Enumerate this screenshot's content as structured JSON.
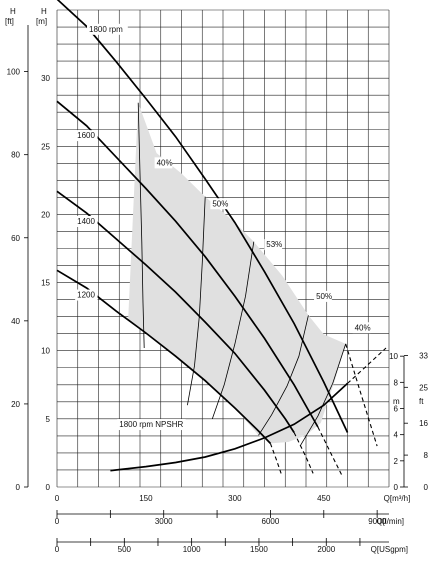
{
  "chart_data": {
    "type": "line",
    "axes": {
      "h_m": {
        "label": "H",
        "unit": "[m]",
        "min": 0,
        "max": 35,
        "ticks": [
          0,
          5,
          10,
          15,
          20,
          25,
          30
        ]
      },
      "h_ft": {
        "label": "H",
        "unit": "[ft]",
        "ticks": [
          0,
          20,
          40,
          60,
          80,
          100
        ]
      },
      "npsh_m": {
        "label": "m",
        "ticks": [
          0,
          2,
          4,
          6,
          8,
          10
        ]
      },
      "npsh_ft": {
        "label": "ft",
        "ticks": [
          0,
          8,
          16,
          25,
          33
        ]
      },
      "q_m3h": {
        "label": "Q[m³/h]",
        "min": 0,
        "max": 560,
        "ticks": [
          0,
          150,
          300,
          450
        ]
      },
      "q_lmin": {
        "label": "Q[l/min]",
        "ticks": [
          0,
          3000,
          6000,
          9000
        ]
      },
      "q_usgpm": {
        "label": "Q[USgpm]",
        "ticks": [
          0,
          500,
          1000,
          1500,
          2000
        ]
      }
    },
    "grid": true,
    "speed_curves": [
      {
        "name": "1800 rpm",
        "points": [
          [
            0,
            35.8
          ],
          [
            50,
            33.8
          ],
          [
            100,
            31.2
          ],
          [
            150,
            28.5
          ],
          [
            200,
            25.7
          ],
          [
            250,
            22.6
          ],
          [
            300,
            19.4
          ],
          [
            350,
            15.8
          ],
          [
            400,
            12.0
          ],
          [
            450,
            7.7
          ],
          [
            490,
            4.0
          ]
        ]
      },
      {
        "name": "1600",
        "points": [
          [
            0,
            28.3
          ],
          [
            50,
            26.5
          ],
          [
            100,
            24.2
          ],
          [
            150,
            21.9
          ],
          [
            200,
            19.5
          ],
          [
            250,
            16.9
          ],
          [
            300,
            14.0
          ],
          [
            350,
            10.9
          ],
          [
            400,
            7.5
          ],
          [
            440,
            4.4
          ]
        ]
      },
      {
        "name": "1400",
        "points": [
          [
            0,
            21.7
          ],
          [
            50,
            20.1
          ],
          [
            100,
            18.2
          ],
          [
            150,
            16.3
          ],
          [
            200,
            14.3
          ],
          [
            250,
            12.1
          ],
          [
            300,
            9.8
          ],
          [
            350,
            7.1
          ],
          [
            385,
            5.0
          ],
          [
            400,
            4.0
          ]
        ]
      },
      {
        "name": "1200",
        "points": [
          [
            0,
            15.9
          ],
          [
            50,
            14.6
          ],
          [
            100,
            12.9
          ],
          [
            150,
            11.3
          ],
          [
            200,
            9.6
          ],
          [
            250,
            7.8
          ],
          [
            300,
            5.8
          ],
          [
            340,
            4.1
          ],
          [
            360,
            3.2
          ]
        ]
      }
    ],
    "efficiency_curves": [
      {
        "name": "40%",
        "points": [
          [
            137,
            28.2
          ],
          [
            140,
            23
          ],
          [
            143,
            18
          ],
          [
            145,
            13.5
          ],
          [
            147,
            10.2
          ]
        ]
      },
      {
        "name": "50%",
        "points": [
          [
            250,
            21.3
          ],
          [
            245,
            16.5
          ],
          [
            240,
            12.5
          ],
          [
            232,
            8.9
          ],
          [
            220,
            6.0
          ]
        ]
      },
      {
        "name": "53%",
        "points": [
          [
            332,
            18.0
          ],
          [
            318,
            14.0
          ],
          [
            300,
            10.5
          ],
          [
            282,
            7.5
          ],
          [
            262,
            5.0
          ]
        ]
      },
      {
        "name": "50%",
        "points": [
          [
            424,
            12.6
          ],
          [
            408,
            9.6
          ],
          [
            388,
            7.4
          ],
          [
            362,
            5.3
          ],
          [
            340,
            3.8
          ]
        ]
      },
      {
        "name": "40%",
        "points": [
          [
            487,
            10.5
          ],
          [
            465,
            7.6
          ],
          [
            440,
            5.2
          ],
          [
            410,
            3.0
          ]
        ]
      }
    ],
    "efficiency_label_positions": [
      {
        "text": "40%",
        "q": 168,
        "h": 23.6
      },
      {
        "text": "50%",
        "q": 262,
        "h": 20.6
      },
      {
        "text": "53%",
        "q": 353,
        "h": 17.6
      },
      {
        "text": "50%",
        "q": 437,
        "h": 13.8
      },
      {
        "text": "40%",
        "q": 502,
        "h": 11.5
      }
    ],
    "speed_label_positions": [
      {
        "text": "1800 rpm",
        "q": 54,
        "h": 33.4
      },
      {
        "text": "1600",
        "q": 34,
        "h": 25.6
      },
      {
        "text": "1400",
        "q": 34,
        "h": 19.3
      },
      {
        "text": "1200",
        "q": 34,
        "h": 13.9
      }
    ],
    "npsh_curve": {
      "name": "1800 rpm NPSHR",
      "solid": [
        [
          90,
          1.2
        ],
        [
          150,
          1.5
        ],
        [
          200,
          1.8
        ],
        [
          250,
          2.2
        ],
        [
          300,
          2.8
        ],
        [
          350,
          3.6
        ],
        [
          400,
          4.6
        ],
        [
          450,
          6.0
        ],
        [
          490,
          7.6
        ]
      ],
      "dashed": [
        [
          490,
          7.6
        ],
        [
          520,
          8.8
        ],
        [
          555,
          10.2
        ]
      ],
      "label_position": {
        "q": 105,
        "h": 4.4
      }
    },
    "operating_region": {
      "fill_color": "#e0e0e0",
      "polygon": [
        [
          137,
          28.2
        ],
        [
          168,
          24.5
        ],
        [
          210,
          23.0
        ],
        [
          250,
          21.3
        ],
        [
          300,
          19.4
        ],
        [
          332,
          18.0
        ],
        [
          380,
          15.5
        ],
        [
          424,
          12.6
        ],
        [
          450,
          11.2
        ],
        [
          487,
          10.5
        ],
        [
          470,
          8.0
        ],
        [
          445,
          4.7
        ],
        [
          420,
          3.8
        ],
        [
          390,
          3.3
        ],
        [
          360,
          3.2
        ],
        [
          340,
          3.8
        ],
        [
          300,
          5.8
        ],
        [
          250,
          7.8
        ],
        [
          200,
          9.6
        ],
        [
          150,
          11.3
        ],
        [
          120,
          12.2
        ]
      ]
    },
    "dashed_extensions": [
      [
        [
          440,
          4.4
        ],
        [
          465,
          2.2
        ],
        [
          480,
          0.9
        ]
      ],
      [
        [
          400,
          4.0
        ],
        [
          420,
          2.2
        ],
        [
          432,
          1.0
        ]
      ],
      [
        [
          360,
          3.2
        ],
        [
          370,
          2.0
        ],
        [
          378,
          1.0
        ]
      ],
      [
        [
          487,
          10.5
        ],
        [
          510,
          7.2
        ],
        [
          540,
          3.0
        ]
      ]
    ]
  },
  "colors": {
    "grid": "#222222",
    "curve": "#000000",
    "region": "#e0e0e0"
  }
}
